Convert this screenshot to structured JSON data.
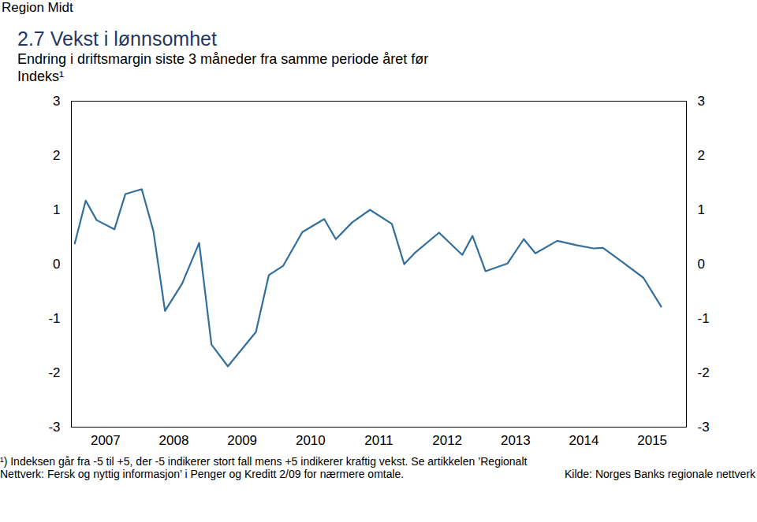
{
  "chart_data": {
    "type": "line",
    "header": "Region Midt",
    "title": "2.7 Vekst i lønnsomhet",
    "subtitle": "Endring i driftsmargin siste 3 måneder fra samme periode året før",
    "y_label": "Indeks¹",
    "note": "¹) Indeksen går fra -5 til +5, der -5 indikerer stort fall mens +5 indikerer kraftig vekst. Se artikkelen ’Regionalt Nettverk: Fersk og nyttig informasjon’ i Penger og Kreditt 2/09 for nærmere omtale.",
    "source": "Kilde: Norges Banks regionale nettverk",
    "color": "#336f9c",
    "x": [
      2007.05,
      2007.21,
      2007.37,
      2007.63,
      2007.79,
      2008.03,
      2008.2,
      2008.37,
      2008.62,
      2008.87,
      2009.05,
      2009.29,
      2009.7,
      2009.89,
      2010.1,
      2010.38,
      2010.7,
      2010.87,
      2011.11,
      2011.37,
      2011.69,
      2011.87,
      2012.02,
      2012.38,
      2012.72,
      2012.87,
      2013.06,
      2013.38,
      2013.62,
      2013.79,
      2014.11,
      2014.39,
      2014.64,
      2014.78,
      2015.06,
      2015.37,
      2015.63
    ],
    "values": [
      0.38,
      1.17,
      0.81,
      0.64,
      1.29,
      1.38,
      0.61,
      -0.86,
      -0.36,
      0.39,
      -1.48,
      -1.88,
      -1.25,
      -0.2,
      -0.03,
      0.59,
      0.83,
      0.46,
      0.77,
      1.0,
      0.74,
      0.0,
      0.2,
      0.58,
      0.17,
      0.52,
      -0.13,
      0.01,
      0.46,
      0.2,
      0.43,
      0.35,
      0.29,
      0.3,
      0.04,
      -0.25,
      -0.78
    ],
    "xlim": [
      2007,
      2016
    ],
    "xticks": [
      {
        "value": 2007.5,
        "label": "2007"
      },
      {
        "value": 2008.5,
        "label": "2008"
      },
      {
        "value": 2009.5,
        "label": "2009"
      },
      {
        "value": 2010.5,
        "label": "2010"
      },
      {
        "value": 2011.5,
        "label": "2011"
      },
      {
        "value": 2012.5,
        "label": "2012"
      },
      {
        "value": 2013.5,
        "label": "2013"
      },
      {
        "value": 2014.5,
        "label": "2014"
      },
      {
        "value": 2015.5,
        "label": "2015"
      }
    ],
    "ylim": [
      -3,
      3
    ],
    "yticks": [
      -3,
      -2,
      -1,
      0,
      1,
      2,
      3
    ],
    "grid": false
  }
}
